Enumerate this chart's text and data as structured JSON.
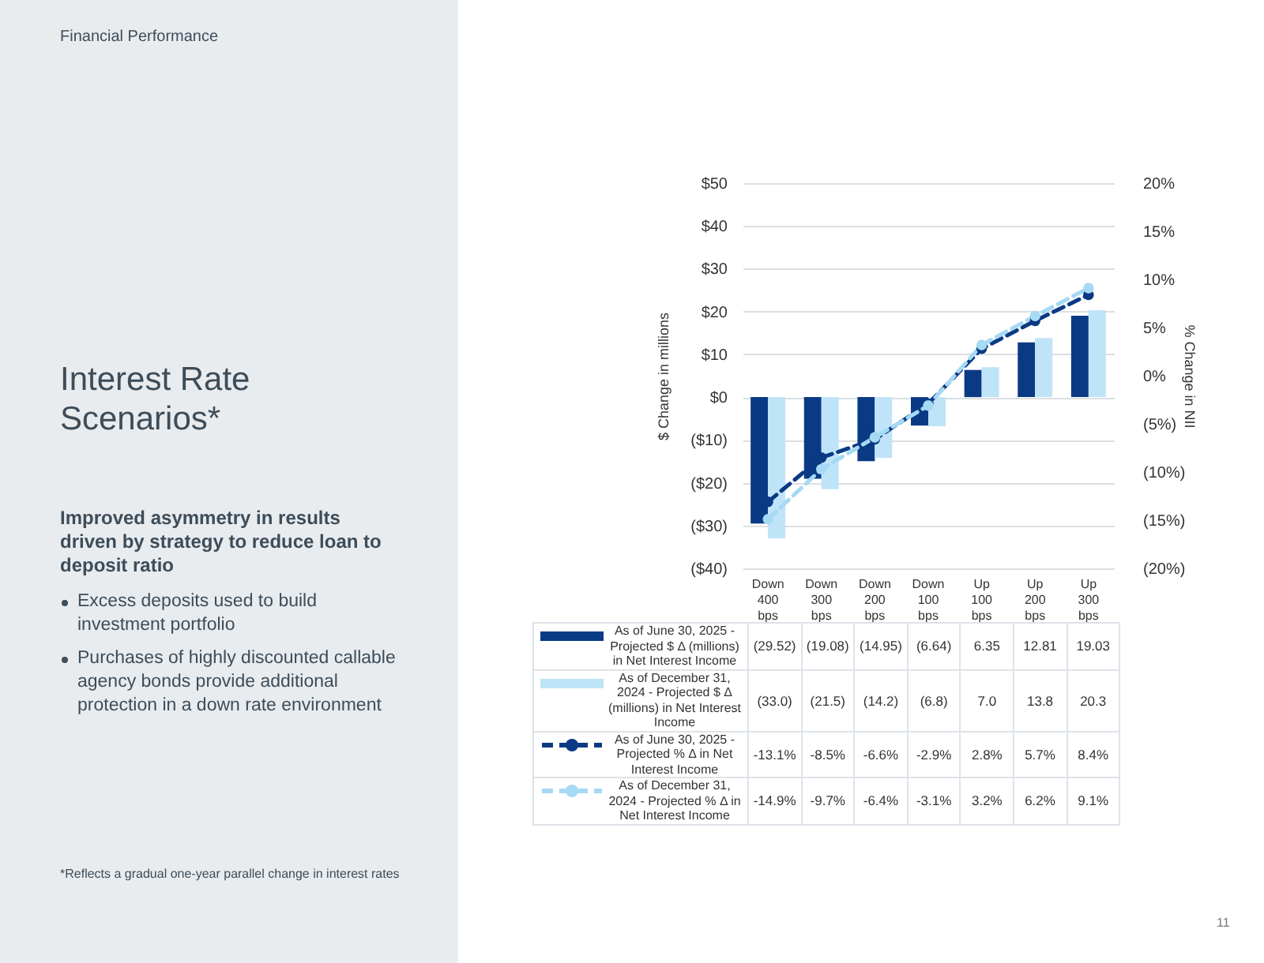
{
  "chart_data": {
    "type": "bar",
    "title": "Interest Rate Scenarios*",
    "subtitle": "Improved asymmetry in results driven by strategy to reduce loan to deposit ratio",
    "annotations": [
      "Financial Performance",
      "Excess deposits used to build investment portfolio",
      "Purchases of highly discounted callable agency bonds provide additional protection in a down rate environment",
      "*Reflects a gradual one-year parallel change in interest rates",
      "11"
    ],
    "ylabel": "$ Change  in millions",
    "y2label": "% Change in NII",
    "categories": [
      "Down 400 bps",
      "Down 300 bps",
      "Down 200 bps",
      "Down 100 bps",
      "Up 100 bps",
      "Up 200 bps",
      "Up 300 bps"
    ],
    "series": [
      {
        "name": "As of June 30, 2025 - Projected $ Δ (millions) in Net Interest Income",
        "color": "#0b3a84",
        "values": [
          -29.52,
          -19.08,
          -14.95,
          -6.64,
          6.35,
          12.81,
          19.03
        ],
        "value_labels": [
          "(29.52)",
          "(19.08)",
          "(14.95)",
          "(6.64)",
          "6.35",
          "12.81",
          "19.03"
        ]
      },
      {
        "name": "As of December 31, 2024 - Projected $ Δ (millions) in Net Interest Income",
        "color": "#bfe4f8",
        "values": [
          -33.0,
          -21.5,
          -14.2,
          -6.8,
          7.0,
          13.8,
          20.3
        ],
        "value_labels": [
          "(33.0)",
          "(21.5)",
          "(14.2)",
          "(6.8)",
          "7.0",
          "13.8",
          "20.3"
        ]
      },
      {
        "name": "As of June 30, 2025 - Projected % Δ in Net Interest Income",
        "type": "line",
        "axis": "y2",
        "line_style": "dashed",
        "color": "#0b3a84",
        "values": [
          -13.1,
          -8.5,
          -6.6,
          -2.9,
          2.8,
          5.7,
          8.4
        ],
        "value_labels": [
          "-13.1%",
          "-8.5%",
          "-6.6%",
          "-2.9%",
          "2.8%",
          "5.7%",
          "8.4%"
        ]
      },
      {
        "name": "As of December 31, 2024 - Projected % Δ in Net Interest Income",
        "type": "line",
        "axis": "y2",
        "line_style": "dashed",
        "color": "#a6d9f4",
        "values": [
          -14.9,
          -9.7,
          -6.4,
          -3.1,
          3.2,
          6.2,
          9.1
        ],
        "value_labels": [
          "-14.9%",
          "-9.7%",
          "-6.4%",
          "-3.1%",
          "3.2%",
          "6.2%",
          "9.1%"
        ]
      }
    ],
    "ylim": [
      -40,
      50
    ],
    "yticks": [
      {
        "value": -40,
        "label": "($40)"
      },
      {
        "value": -30,
        "label": "($30)"
      },
      {
        "value": -20,
        "label": "($20)"
      },
      {
        "value": -10,
        "label": "($10)"
      },
      {
        "value": 0,
        "label": "$0"
      },
      {
        "value": 10,
        "label": "$10"
      },
      {
        "value": 20,
        "label": "$20"
      },
      {
        "value": 30,
        "label": "$30"
      },
      {
        "value": 40,
        "label": "$40"
      },
      {
        "value": 50,
        "label": "$50"
      }
    ],
    "y2lim": [
      -20,
      20
    ],
    "y2ticks": [
      {
        "value": -20,
        "label": "(20%)"
      },
      {
        "value": -15,
        "label": "(15%)"
      },
      {
        "value": -10,
        "label": "(10%)"
      },
      {
        "value": -5,
        "label": "(5%)"
      },
      {
        "value": 0,
        "label": "0%"
      },
      {
        "value": 5,
        "label": "5%"
      },
      {
        "value": 10,
        "label": "10%"
      },
      {
        "value": 15,
        "label": "15%"
      },
      {
        "value": 20,
        "label": "20%"
      }
    ],
    "grid": "y",
    "legend": "bottom",
    "marker": "circle"
  }
}
